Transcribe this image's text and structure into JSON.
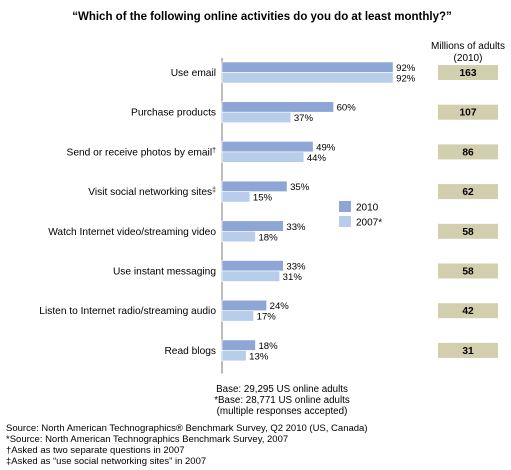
{
  "chart_data": {
    "type": "bar",
    "orientation": "horizontal",
    "title": "“Which of the following online activities do you do at least monthly?”",
    "categories": [
      "Use email",
      "Purchase products",
      "Send or receive photos by email",
      "Visit social networking sites",
      "Watch Internet video/streaming video",
      "Use instant messaging",
      "Listen to Internet radio/streaming audio",
      "Read blogs"
    ],
    "category_markers": [
      "",
      "",
      "†",
      "‡",
      "",
      "",
      "",
      ""
    ],
    "series": [
      {
        "name": "2010",
        "color": "#8da6d6",
        "values": [
          92,
          60,
          49,
          35,
          33,
          33,
          24,
          18
        ]
      },
      {
        "name": "2007*",
        "color": "#b8cdea",
        "values": [
          92,
          37,
          44,
          15,
          18,
          31,
          17,
          13
        ]
      }
    ],
    "value_suffix": "%",
    "xlim": [
      0,
      100
    ],
    "grid": false,
    "legend": {
      "position": "center-right",
      "entries": [
        "2010",
        "2007*"
      ]
    },
    "millions_header": [
      "Millions of adults",
      "(2010)"
    ],
    "millions_of_adults": [
      163,
      107,
      86,
      62,
      58,
      58,
      42,
      31
    ],
    "millions_box_color": "#d3ceae"
  },
  "base_notes": [
    "Base: 29,295 US online adults",
    "*Base: 28,771 US online adults",
    "(multiple responses accepted)"
  ],
  "sources": [
    "Source: North American Technographics® Benchmark Survey, Q2 2010 (US, Canada)",
    "*Source: North American Technographics Benchmark Survey, 2007",
    "†Asked as two separate questions in 2007",
    "‡Asked as “use social networking sites” in 2007"
  ]
}
